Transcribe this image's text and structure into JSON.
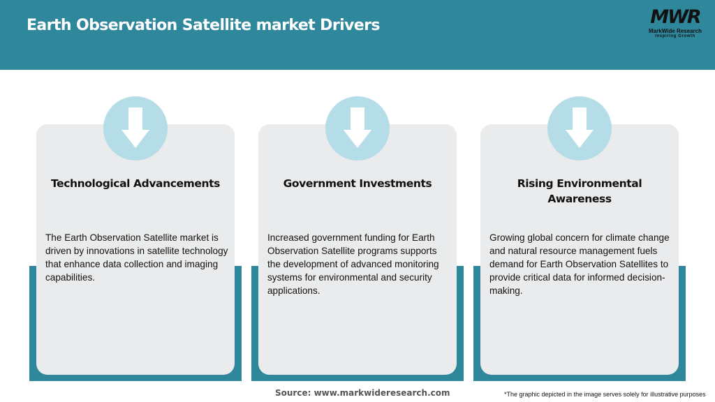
{
  "header": {
    "title": "Earth Observation Satellite market Drivers",
    "logo": {
      "mark": "MWR",
      "name": "MarkWide Research",
      "tagline": "Inspiring Growth"
    }
  },
  "colors": {
    "header": "#2f879c",
    "card": "#e9ebec",
    "circle": "#b5dde7"
  },
  "cards": [
    {
      "icon": "arrow-down-icon",
      "title": "Technological Advancements",
      "body": "The Earth Observation Satellite market is driven by innovations in satellite technology that enhance data collection and imaging capabilities."
    },
    {
      "icon": "arrow-down-icon",
      "title": "Government Investments",
      "body": "Increased government funding for Earth Observation Satellite programs supports the development of advanced monitoring systems for environmental and security applications."
    },
    {
      "icon": "arrow-down-icon",
      "title": "Rising Environmental Awareness",
      "body": "Growing global concern for climate change and natural resource management fuels demand for Earth Observation Satellites to provide critical data for informed decision-making."
    }
  ],
  "footer": {
    "source": "Source: www.markwideresearch.com",
    "note": "*The graphic depicted in the image serves solely for illustrative purposes"
  }
}
